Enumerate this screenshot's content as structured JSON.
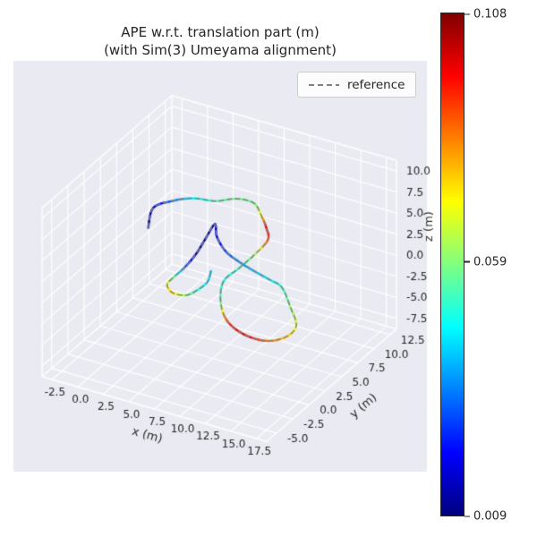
{
  "chart_data": {
    "type": "line",
    "subtype": "3d-trajectory-colored-by-error",
    "title": "APE w.r.t. translation part (m)",
    "subtitle": "(with Sim(3) Umeyama alignment)",
    "xlabel": "x (m)",
    "ylabel": "y (m)",
    "zlabel": "z (m)",
    "xlim": [
      -3.5,
      18.5
    ],
    "ylim": [
      -6.5,
      13.5
    ],
    "zlim": [
      -8.75,
      11.25
    ],
    "xticks": [
      -2.5,
      0,
      2.5,
      5,
      7.5,
      10,
      12.5,
      15,
      17.5
    ],
    "yticks": [
      -5,
      -2.5,
      0,
      2.5,
      5,
      7.5,
      10,
      12.5
    ],
    "zticks": [
      -7.5,
      -5,
      -2.5,
      0,
      2.5,
      5,
      7.5,
      10
    ],
    "grid": true,
    "view": {
      "elev": 30,
      "azim": -60
    },
    "legend": {
      "position": "upper right",
      "entries": [
        {
          "label": "reference",
          "line_style": "dashed",
          "color": "#808080"
        }
      ]
    },
    "colorbar": {
      "min": 0.009,
      "mid": 0.059,
      "max": 0.108,
      "tick_labels": [
        "0.108",
        "0.059",
        "0.009"
      ],
      "colormap": "jet"
    },
    "trajectory_xyz_error": [
      [
        0.8,
        3.1,
        4.0,
        0.012
      ],
      [
        0.2,
        4.8,
        5.0,
        0.014
      ],
      [
        1.1,
        6.2,
        5.2,
        0.03
      ],
      [
        2.6,
        7.2,
        5.4,
        0.045
      ],
      [
        4.4,
        7.8,
        5.3,
        0.052
      ],
      [
        5.9,
        8.7,
        5.5,
        0.058
      ],
      [
        7.4,
        9.0,
        5.3,
        0.055
      ],
      [
        8.4,
        8.5,
        4.6,
        0.07
      ],
      [
        9.3,
        7.9,
        3.8,
        0.098
      ],
      [
        9.9,
        7.2,
        3.0,
        0.09
      ],
      [
        9.6,
        5.5,
        2.2,
        0.06
      ],
      [
        9.1,
        4.0,
        1.5,
        0.052
      ],
      [
        8.6,
        2.4,
        0.8,
        0.048
      ],
      [
        9.3,
        0.9,
        -0.5,
        0.055
      ],
      [
        10.7,
        -0.2,
        -1.5,
        0.092
      ],
      [
        12.6,
        -0.5,
        -2.2,
        0.1
      ],
      [
        14.4,
        0.0,
        -2.6,
        0.085
      ],
      [
        15.6,
        1.1,
        -2.4,
        0.075
      ],
      [
        15.8,
        2.3,
        -1.8,
        0.07
      ],
      [
        14.4,
        3.6,
        -1.0,
        0.06
      ],
      [
        12.8,
        4.8,
        0.0,
        0.05
      ],
      [
        11.5,
        5.0,
        0.3,
        0.045
      ],
      [
        10.0,
        4.9,
        0.9,
        0.04
      ],
      [
        8.5,
        4.9,
        1.5,
        0.035
      ],
      [
        7.1,
        5.1,
        2.1,
        0.028
      ],
      [
        5.8,
        5.8,
        2.9,
        0.018
      ],
      [
        5.1,
        6.6,
        3.6,
        0.014
      ],
      [
        5.1,
        5.1,
        2.8,
        0.013
      ],
      [
        5.1,
        3.7,
        2.0,
        0.012
      ],
      [
        4.9,
        2.3,
        1.3,
        0.03
      ],
      [
        4.5,
        1.2,
        0.7,
        0.055
      ],
      [
        4.3,
        0.5,
        0.2,
        0.07
      ],
      [
        5.1,
        0.1,
        -0.2,
        0.075
      ],
      [
        6.3,
        0.3,
        -0.2,
        0.06
      ],
      [
        6.9,
        1.1,
        0.1,
        0.05
      ],
      [
        7.3,
        2.0,
        0.6,
        0.045
      ],
      [
        7.0,
        3.0,
        1.1,
        0.04
      ]
    ]
  },
  "style": {
    "figure_bg": "#ffffff",
    "axes_bg": "#eaeaf2",
    "pane_bg": "#eaeaf2",
    "grid_color": "#ffffff",
    "text_color": "#262626",
    "reference_color": "#808080",
    "jet_stops": [
      "#00007f",
      "#0000ff",
      "#0080ff",
      "#00ffff",
      "#80ff80",
      "#ffff00",
      "#ff8000",
      "#ff0000",
      "#800000"
    ]
  }
}
